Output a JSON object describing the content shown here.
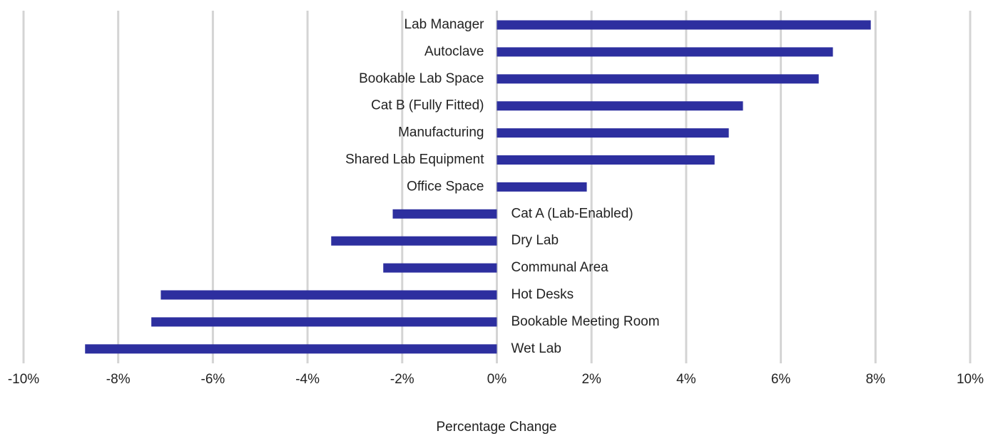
{
  "chart_data": {
    "type": "bar",
    "orientation": "horizontal",
    "x_label": "Percentage Change",
    "categories": [
      "Lab Manager",
      "Autoclave",
      "Bookable Lab Space",
      "Cat B (Fully Fitted)",
      "Manufacturing",
      "Shared Lab Equipment",
      "Office Space",
      "Cat A (Lab-Enabled)",
      "Dry Lab",
      "Communal Area",
      "Hot Desks",
      "Bookable Meeting Room",
      "Wet Lab"
    ],
    "values": [
      7.9,
      7.1,
      6.8,
      5.2,
      4.9,
      4.6,
      1.9,
      -2.2,
      -3.5,
      -2.4,
      -7.1,
      -7.3,
      -8.7
    ],
    "color": "#2d2f9f",
    "xlim": [
      -10,
      10
    ],
    "xticks": [
      {
        "value": -10,
        "label": "-10%"
      },
      {
        "value": -8,
        "label": "-8%"
      },
      {
        "value": -6,
        "label": "-6%"
      },
      {
        "value": -4,
        "label": "-4%"
      },
      {
        "value": -2,
        "label": "-2%"
      },
      {
        "value": 0,
        "label": "0%"
      },
      {
        "value": 2,
        "label": "2%"
      },
      {
        "value": 4,
        "label": "4%"
      },
      {
        "value": 6,
        "label": "6%"
      },
      {
        "value": 8,
        "label": "8%"
      },
      {
        "value": 10,
        "label": "10%"
      }
    ],
    "grid": true
  }
}
